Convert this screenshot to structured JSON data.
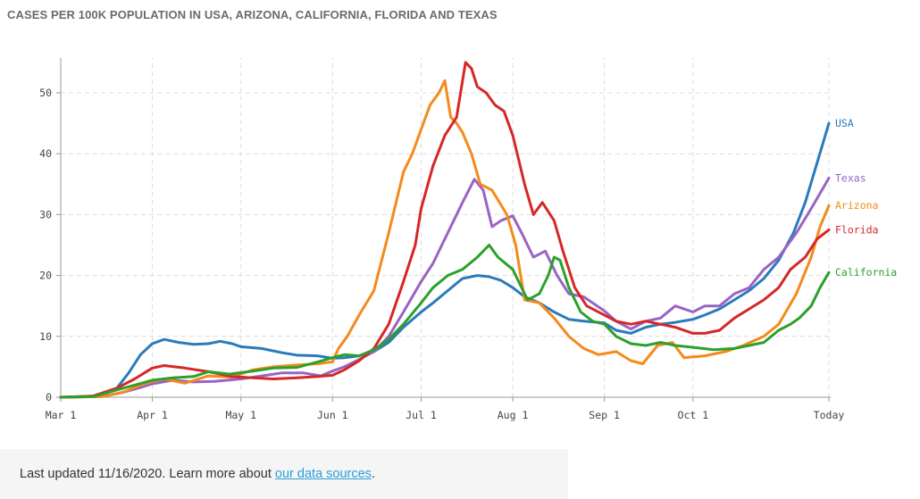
{
  "title": "CASES PER 100K POPULATION IN USA, ARIZONA, CALIFORNIA, FLORIDA AND TEXAS",
  "footer": {
    "prefix": "Last updated 11/16/2020. Learn more about ",
    "link": "our data sources",
    "suffix": "."
  },
  "chart_data": {
    "type": "line",
    "title": "CASES PER 100K POPULATION IN USA, ARIZONA, CALIFORNIA, FLORIDA AND TEXAS",
    "x_range": [
      "2020-03-01",
      "2020-11-16"
    ],
    "ylim": [
      0,
      55
    ],
    "y_ticks": [
      0,
      10,
      20,
      30,
      40,
      50
    ],
    "x_ticks": [
      {
        "date": "2020-03-01",
        "label": "Mar 1"
      },
      {
        "date": "2020-04-01",
        "label": "Apr 1"
      },
      {
        "date": "2020-05-01",
        "label": "May 1"
      },
      {
        "date": "2020-06-01",
        "label": "Jun 1"
      },
      {
        "date": "2020-07-01",
        "label": "Jul 1"
      },
      {
        "date": "2020-08-01",
        "label": "Aug 1"
      },
      {
        "date": "2020-09-01",
        "label": "Sep 1"
      },
      {
        "date": "2020-10-01",
        "label": "Oct 1"
      },
      {
        "date": "2020-11-16",
        "label": "Today"
      }
    ],
    "grid": true,
    "legend": "labels at line ends (right)",
    "series": [
      {
        "name": "USA",
        "color": "#2b7bba",
        "points": [
          [
            "2020-03-01",
            0
          ],
          [
            "2020-03-10",
            0.1
          ],
          [
            "2020-03-15",
            0.3
          ],
          [
            "2020-03-20",
            1.5
          ],
          [
            "2020-03-24",
            4
          ],
          [
            "2020-03-28",
            7
          ],
          [
            "2020-04-01",
            8.8
          ],
          [
            "2020-04-05",
            9.5
          ],
          [
            "2020-04-10",
            9
          ],
          [
            "2020-04-15",
            8.7
          ],
          [
            "2020-04-20",
            8.8
          ],
          [
            "2020-04-24",
            9.2
          ],
          [
            "2020-04-28",
            8.8
          ],
          [
            "2020-05-01",
            8.3
          ],
          [
            "2020-05-08",
            8
          ],
          [
            "2020-05-15",
            7.3
          ],
          [
            "2020-05-20",
            6.9
          ],
          [
            "2020-05-27",
            6.8
          ],
          [
            "2020-06-01",
            6.4
          ],
          [
            "2020-06-05",
            6.5
          ],
          [
            "2020-06-10",
            6.8
          ],
          [
            "2020-06-15",
            7.5
          ],
          [
            "2020-06-20",
            9
          ],
          [
            "2020-06-25",
            11.5
          ],
          [
            "2020-07-01",
            14
          ],
          [
            "2020-07-05",
            15.5
          ],
          [
            "2020-07-10",
            17.5
          ],
          [
            "2020-07-15",
            19.5
          ],
          [
            "2020-07-20",
            20
          ],
          [
            "2020-07-24",
            19.8
          ],
          [
            "2020-07-28",
            19.2
          ],
          [
            "2020-08-01",
            18
          ],
          [
            "2020-08-05",
            16.5
          ],
          [
            "2020-08-10",
            15.5
          ],
          [
            "2020-08-15",
            14
          ],
          [
            "2020-08-20",
            12.8
          ],
          [
            "2020-08-25",
            12.5
          ],
          [
            "2020-09-01",
            12.2
          ],
          [
            "2020-09-05",
            11
          ],
          [
            "2020-09-10",
            10.5
          ],
          [
            "2020-09-15",
            11.5
          ],
          [
            "2020-09-20",
            12
          ],
          [
            "2020-09-25",
            12.3
          ],
          [
            "2020-10-01",
            12.8
          ],
          [
            "2020-10-05",
            13.5
          ],
          [
            "2020-10-10",
            14.5
          ],
          [
            "2020-10-15",
            16
          ],
          [
            "2020-10-20",
            17.5
          ],
          [
            "2020-10-25",
            19.5
          ],
          [
            "2020-10-30",
            22.5
          ],
          [
            "2020-11-04",
            27
          ],
          [
            "2020-11-08",
            32
          ],
          [
            "2020-11-12",
            38.5
          ],
          [
            "2020-11-16",
            45
          ]
        ]
      },
      {
        "name": "Texas",
        "color": "#9a63c4",
        "points": [
          [
            "2020-03-01",
            0
          ],
          [
            "2020-03-15",
            0.1
          ],
          [
            "2020-03-22",
            0.8
          ],
          [
            "2020-03-28",
            1.6
          ],
          [
            "2020-04-01",
            2.2
          ],
          [
            "2020-04-08",
            2.8
          ],
          [
            "2020-04-15",
            2.5
          ],
          [
            "2020-04-22",
            2.6
          ],
          [
            "2020-05-01",
            3
          ],
          [
            "2020-05-08",
            3.5
          ],
          [
            "2020-05-15",
            4
          ],
          [
            "2020-05-22",
            4
          ],
          [
            "2020-05-28",
            3.5
          ],
          [
            "2020-06-01",
            4.3
          ],
          [
            "2020-06-05",
            5
          ],
          [
            "2020-06-10",
            6.2
          ],
          [
            "2020-06-15",
            7.5
          ],
          [
            "2020-06-20",
            10
          ],
          [
            "2020-06-25",
            14
          ],
          [
            "2020-07-01",
            19
          ],
          [
            "2020-07-05",
            22
          ],
          [
            "2020-07-10",
            27
          ],
          [
            "2020-07-15",
            32
          ],
          [
            "2020-07-19",
            35.8
          ],
          [
            "2020-07-22",
            34
          ],
          [
            "2020-07-25",
            28
          ],
          [
            "2020-07-28",
            29
          ],
          [
            "2020-08-01",
            29.8
          ],
          [
            "2020-08-04",
            27
          ],
          [
            "2020-08-08",
            23
          ],
          [
            "2020-08-12",
            24
          ],
          [
            "2020-08-16",
            20
          ],
          [
            "2020-08-20",
            17
          ],
          [
            "2020-08-25",
            16.5
          ],
          [
            "2020-09-01",
            14.2
          ],
          [
            "2020-09-05",
            12.5
          ],
          [
            "2020-09-10",
            11.2
          ],
          [
            "2020-09-15",
            12.5
          ],
          [
            "2020-09-20",
            13
          ],
          [
            "2020-09-25",
            15
          ],
          [
            "2020-10-01",
            14
          ],
          [
            "2020-10-05",
            15
          ],
          [
            "2020-10-10",
            15
          ],
          [
            "2020-10-15",
            17
          ],
          [
            "2020-10-20",
            18
          ],
          [
            "2020-10-25",
            21
          ],
          [
            "2020-10-30",
            23
          ],
          [
            "2020-11-05",
            27
          ],
          [
            "2020-11-10",
            31
          ],
          [
            "2020-11-16",
            36
          ]
        ]
      },
      {
        "name": "Arizona",
        "color": "#f48a1c",
        "points": [
          [
            "2020-03-01",
            0
          ],
          [
            "2020-03-15",
            0.1
          ],
          [
            "2020-03-22",
            0.8
          ],
          [
            "2020-03-28",
            2
          ],
          [
            "2020-04-01",
            2.6
          ],
          [
            "2020-04-05",
            3
          ],
          [
            "2020-04-12",
            2.3
          ],
          [
            "2020-04-20",
            3.5
          ],
          [
            "2020-04-28",
            3.3
          ],
          [
            "2020-05-05",
            4.5
          ],
          [
            "2020-05-12",
            5
          ],
          [
            "2020-05-20",
            5.3
          ],
          [
            "2020-05-27",
            5.5
          ],
          [
            "2020-06-01",
            5.8
          ],
          [
            "2020-06-03",
            8
          ],
          [
            "2020-06-06",
            10
          ],
          [
            "2020-06-10",
            13.5
          ],
          [
            "2020-06-15",
            17.5
          ],
          [
            "2020-06-20",
            27
          ],
          [
            "2020-06-25",
            37
          ],
          [
            "2020-06-28",
            40
          ],
          [
            "2020-07-01",
            44
          ],
          [
            "2020-07-04",
            48
          ],
          [
            "2020-07-07",
            50
          ],
          [
            "2020-07-09",
            52
          ],
          [
            "2020-07-11",
            46
          ],
          [
            "2020-07-13",
            45
          ],
          [
            "2020-07-15",
            43.5
          ],
          [
            "2020-07-18",
            40
          ],
          [
            "2020-07-21",
            35
          ],
          [
            "2020-07-25",
            34
          ],
          [
            "2020-07-30",
            30
          ],
          [
            "2020-08-02",
            25
          ],
          [
            "2020-08-05",
            16
          ],
          [
            "2020-08-10",
            15.5
          ],
          [
            "2020-08-15",
            13
          ],
          [
            "2020-08-20",
            10
          ],
          [
            "2020-08-25",
            8
          ],
          [
            "2020-08-30",
            7
          ],
          [
            "2020-09-05",
            7.5
          ],
          [
            "2020-09-10",
            6
          ],
          [
            "2020-09-14",
            5.5
          ],
          [
            "2020-09-19",
            8.5
          ],
          [
            "2020-09-24",
            9
          ],
          [
            "2020-09-28",
            6.5
          ],
          [
            "2020-10-05",
            6.8
          ],
          [
            "2020-10-12",
            7.5
          ],
          [
            "2020-10-18",
            8.5
          ],
          [
            "2020-10-25",
            10
          ],
          [
            "2020-10-30",
            12
          ],
          [
            "2020-11-05",
            17
          ],
          [
            "2020-11-10",
            23
          ],
          [
            "2020-11-13",
            28
          ],
          [
            "2020-11-16",
            31.5
          ]
        ]
      },
      {
        "name": "Florida",
        "color": "#d62728",
        "points": [
          [
            "2020-03-01",
            0
          ],
          [
            "2020-03-12",
            0.2
          ],
          [
            "2020-03-20",
            1.5
          ],
          [
            "2020-03-26",
            3
          ],
          [
            "2020-04-01",
            4.8
          ],
          [
            "2020-04-05",
            5.2
          ],
          [
            "2020-04-12",
            4.8
          ],
          [
            "2020-04-20",
            4.2
          ],
          [
            "2020-04-28",
            3.4
          ],
          [
            "2020-05-05",
            3.2
          ],
          [
            "2020-05-12",
            3
          ],
          [
            "2020-05-20",
            3.2
          ],
          [
            "2020-05-27",
            3.4
          ],
          [
            "2020-06-01",
            3.6
          ],
          [
            "2020-06-05",
            4.5
          ],
          [
            "2020-06-10",
            6
          ],
          [
            "2020-06-15",
            8
          ],
          [
            "2020-06-20",
            12
          ],
          [
            "2020-06-25",
            19
          ],
          [
            "2020-06-29",
            25
          ],
          [
            "2020-07-01",
            31
          ],
          [
            "2020-07-05",
            38
          ],
          [
            "2020-07-09",
            43
          ],
          [
            "2020-07-13",
            46
          ],
          [
            "2020-07-16",
            55
          ],
          [
            "2020-07-18",
            54
          ],
          [
            "2020-07-20",
            51
          ],
          [
            "2020-07-23",
            50
          ],
          [
            "2020-07-26",
            48
          ],
          [
            "2020-07-29",
            47
          ],
          [
            "2020-08-01",
            43
          ],
          [
            "2020-08-05",
            35
          ],
          [
            "2020-08-08",
            30
          ],
          [
            "2020-08-11",
            32
          ],
          [
            "2020-08-15",
            29
          ],
          [
            "2020-08-18",
            24
          ],
          [
            "2020-08-22",
            18
          ],
          [
            "2020-08-26",
            15
          ],
          [
            "2020-09-01",
            13.5
          ],
          [
            "2020-09-05",
            12.5
          ],
          [
            "2020-09-10",
            12
          ],
          [
            "2020-09-15",
            12.5
          ],
          [
            "2020-09-20",
            12
          ],
          [
            "2020-09-25",
            11.5
          ],
          [
            "2020-10-01",
            10.5
          ],
          [
            "2020-10-05",
            10.5
          ],
          [
            "2020-10-10",
            11
          ],
          [
            "2020-10-15",
            13
          ],
          [
            "2020-10-20",
            14.5
          ],
          [
            "2020-10-25",
            16
          ],
          [
            "2020-10-30",
            18
          ],
          [
            "2020-11-03",
            21
          ],
          [
            "2020-11-08",
            23
          ],
          [
            "2020-11-12",
            26
          ],
          [
            "2020-11-16",
            27.5
          ]
        ]
      },
      {
        "name": "California",
        "color": "#2ca02c",
        "points": [
          [
            "2020-03-01",
            0
          ],
          [
            "2020-03-12",
            0.1
          ],
          [
            "2020-03-20",
            1.2
          ],
          [
            "2020-03-26",
            2
          ],
          [
            "2020-04-01",
            2.8
          ],
          [
            "2020-04-08",
            3.2
          ],
          [
            "2020-04-15",
            3.4
          ],
          [
            "2020-04-20",
            4.2
          ],
          [
            "2020-04-27",
            3.8
          ],
          [
            "2020-05-05",
            4.3
          ],
          [
            "2020-05-12",
            4.8
          ],
          [
            "2020-05-20",
            4.9
          ],
          [
            "2020-05-27",
            5.8
          ],
          [
            "2020-06-01",
            6.5
          ],
          [
            "2020-06-05",
            7
          ],
          [
            "2020-06-10",
            6.8
          ],
          [
            "2020-06-15",
            7.8
          ],
          [
            "2020-06-20",
            9.5
          ],
          [
            "2020-06-25",
            12
          ],
          [
            "2020-07-01",
            15.5
          ],
          [
            "2020-07-05",
            18
          ],
          [
            "2020-07-10",
            20
          ],
          [
            "2020-07-15",
            21
          ],
          [
            "2020-07-20",
            23
          ],
          [
            "2020-07-24",
            25
          ],
          [
            "2020-07-27",
            23
          ],
          [
            "2020-08-01",
            21
          ],
          [
            "2020-08-03",
            19
          ],
          [
            "2020-08-06",
            16
          ],
          [
            "2020-08-10",
            17
          ],
          [
            "2020-08-13",
            20
          ],
          [
            "2020-08-15",
            23
          ],
          [
            "2020-08-17",
            22.5
          ],
          [
            "2020-08-20",
            18
          ],
          [
            "2020-08-24",
            14
          ],
          [
            "2020-08-28",
            12.5
          ],
          [
            "2020-09-01",
            12
          ],
          [
            "2020-09-05",
            10
          ],
          [
            "2020-09-10",
            8.8
          ],
          [
            "2020-09-15",
            8.5
          ],
          [
            "2020-09-20",
            9
          ],
          [
            "2020-09-25",
            8.5
          ],
          [
            "2020-10-01",
            8.2
          ],
          [
            "2020-10-08",
            7.8
          ],
          [
            "2020-10-15",
            8
          ],
          [
            "2020-10-20",
            8.5
          ],
          [
            "2020-10-25",
            9
          ],
          [
            "2020-10-30",
            11
          ],
          [
            "2020-11-03",
            12
          ],
          [
            "2020-11-06",
            13
          ],
          [
            "2020-11-10",
            15
          ],
          [
            "2020-11-13",
            18
          ],
          [
            "2020-11-16",
            20.5
          ]
        ]
      }
    ]
  }
}
